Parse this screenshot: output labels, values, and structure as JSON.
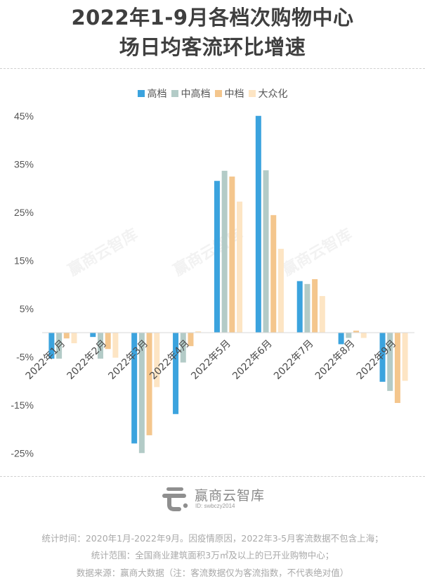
{
  "chart_data": {
    "type": "bar",
    "title": "2022年1-9月各档次购物中心场日均客流环比增速",
    "title_lines": [
      "2022年1-9月各档次购物中心",
      "场日均客流环比增速"
    ],
    "xlabel": "",
    "ylabel": "",
    "categories": [
      "2022年1月",
      "2022年2月",
      "2022年3月",
      "2022年4月",
      "2022年5月",
      "2022年6月",
      "2022年7月",
      "2022年8月",
      "2022年9月"
    ],
    "series": [
      {
        "name": "高档",
        "color": "#3ba3de",
        "values": [
          -5.4,
          -0.9,
          -23.0,
          -16.9,
          31.5,
          45.0,
          10.7,
          -2.4,
          -10.2
        ]
      },
      {
        "name": "中高档",
        "color": "#b3cbc7",
        "values": [
          -5.4,
          -5.4,
          -25.0,
          -6.2,
          33.6,
          33.7,
          10.1,
          -1.1,
          -12.1
        ]
      },
      {
        "name": "中档",
        "color": "#f4c68d",
        "values": [
          -1.2,
          -3.4,
          -21.3,
          -2.8,
          32.4,
          24.4,
          11.1,
          0.4,
          -14.6
        ]
      },
      {
        "name": "大众化",
        "color": "#fde5c4",
        "values": [
          -2.2,
          -5.2,
          -11.3,
          0.3,
          27.2,
          17.4,
          7.6,
          -1.1,
          -10.0
        ]
      }
    ],
    "yticks": [
      45,
      35,
      25,
      15,
      5,
      -5,
      -15,
      -25
    ],
    "ytick_labels": [
      "45%",
      "35%",
      "25%",
      "15%",
      "5%",
      "-5%",
      "-15%",
      "-25%"
    ],
    "ylim": [
      -27,
      47
    ],
    "grid": false,
    "legend_position": "top-center",
    "unit": "%"
  },
  "watermark": "赢商云智库",
  "brand": {
    "name": "赢商云智库",
    "id": "ID: swbczy2014"
  },
  "notes": [
    "统计时间：2020年1月-2022年9月。因疫情原因，2022年3-5月客流数据不包含上海；",
    "统计范围：全国商业建筑面积3万㎡及以上的已开业购物中心；",
    "数据来源：赢商大数据（注：客流数据仅为客流指数，不代表绝对值）"
  ]
}
